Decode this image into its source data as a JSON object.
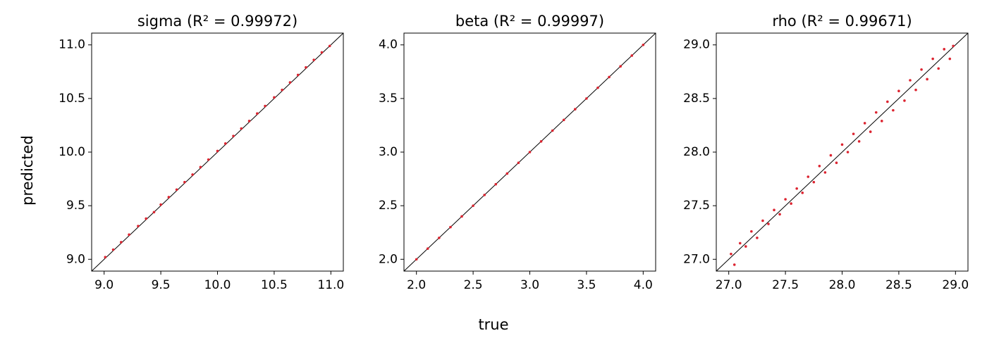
{
  "figure": {
    "xlabel": "true",
    "ylabel": "predicted",
    "reference_line": true
  },
  "chart_data": [
    {
      "type": "scatter",
      "title": "sigma (R² = 0.99972)",
      "color": "#dc2430",
      "xlim": [
        8.89,
        11.11
      ],
      "ylim": [
        8.89,
        11.11
      ],
      "xticks": [
        {
          "value": 9,
          "label": "9.0"
        },
        9.5,
        {
          "value": 10,
          "label": "10.0"
        },
        10.5,
        {
          "value": 11,
          "label": "11.0"
        }
      ],
      "yticks": [
        {
          "value": 9,
          "label": "9.0"
        },
        9.5,
        {
          "value": 10,
          "label": "10.0"
        },
        10.5,
        {
          "value": 11,
          "label": "11.0"
        }
      ],
      "x": [
        9.01,
        9.08,
        9.15,
        9.22,
        9.3,
        9.37,
        9.44,
        9.5,
        9.57,
        9.64,
        9.71,
        9.78,
        9.85,
        9.92,
        10.0,
        10.07,
        10.14,
        10.21,
        10.28,
        10.35,
        10.42,
        10.5,
        10.57,
        10.64,
        10.71,
        10.78,
        10.85,
        10.92,
        10.99
      ],
      "values": [
        9.02,
        9.09,
        9.16,
        9.23,
        9.31,
        9.38,
        9.44,
        9.51,
        9.58,
        9.65,
        9.72,
        9.79,
        9.86,
        9.93,
        10.01,
        10.08,
        10.15,
        10.22,
        10.29,
        10.36,
        10.43,
        10.51,
        10.58,
        10.65,
        10.72,
        10.79,
        10.86,
        10.93,
        10.99
      ]
    },
    {
      "type": "scatter",
      "title": "beta (R² = 0.99997)",
      "color": "#dc2430",
      "xlim": [
        1.89,
        4.11
      ],
      "ylim": [
        1.89,
        4.11
      ],
      "xticks": [
        {
          "value": 2,
          "label": "2.0"
        },
        2.5,
        {
          "value": 3,
          "label": "3.0"
        },
        3.5,
        {
          "value": 4,
          "label": "4.0"
        }
      ],
      "yticks": [
        {
          "value": 2,
          "label": "2.0"
        },
        2.5,
        {
          "value": 3,
          "label": "3.0"
        },
        3.5,
        {
          "value": 4,
          "label": "4.0"
        }
      ],
      "x": [
        2.0,
        2.1,
        2.2,
        2.3,
        2.4,
        2.5,
        2.6,
        2.7,
        2.8,
        2.9,
        3.0,
        3.1,
        3.2,
        3.3,
        3.4,
        3.5,
        3.6,
        3.7,
        3.8,
        3.9,
        4.0
      ],
      "values": [
        2.0,
        2.1,
        2.2,
        2.3,
        2.4,
        2.5,
        2.6,
        2.7,
        2.8,
        2.9,
        3.0,
        3.1,
        3.2,
        3.3,
        3.4,
        3.5,
        3.6,
        3.7,
        3.8,
        3.9,
        4.0
      ]
    },
    {
      "type": "scatter",
      "title": "rho (R² = 0.99671)",
      "color": "#dc2430",
      "xlim": [
        26.89,
        29.11
      ],
      "ylim": [
        26.89,
        29.11
      ],
      "xticks": [
        {
          "value": 27,
          "label": "27.0"
        },
        27.5,
        {
          "value": 28,
          "label": "28.0"
        },
        28.5,
        {
          "value": 29,
          "label": "29.0"
        }
      ],
      "yticks": [
        {
          "value": 27,
          "label": "27.0"
        },
        27.5,
        {
          "value": 28,
          "label": "28.0"
        },
        28.5,
        {
          "value": 29,
          "label": "29.0"
        }
      ],
      "x": [
        27.02,
        27.05,
        27.1,
        27.15,
        27.2,
        27.25,
        27.3,
        27.35,
        27.4,
        27.45,
        27.5,
        27.55,
        27.6,
        27.65,
        27.7,
        27.75,
        27.8,
        27.85,
        27.9,
        27.95,
        28.0,
        28.05,
        28.1,
        28.15,
        28.2,
        28.25,
        28.3,
        28.35,
        28.4,
        28.45,
        28.5,
        28.55,
        28.6,
        28.65,
        28.7,
        28.75,
        28.8,
        28.85,
        28.9,
        28.95,
        28.98
      ],
      "values": [
        27.05,
        26.95,
        27.15,
        27.12,
        27.26,
        27.2,
        27.36,
        27.33,
        27.46,
        27.42,
        27.56,
        27.52,
        27.66,
        27.62,
        27.77,
        27.72,
        27.87,
        27.81,
        27.97,
        27.9,
        28.07,
        28.0,
        28.17,
        28.1,
        28.27,
        28.19,
        28.37,
        28.29,
        28.47,
        28.39,
        28.57,
        28.48,
        28.67,
        28.58,
        28.77,
        28.68,
        28.87,
        28.78,
        28.96,
        28.87,
        28.99
      ]
    }
  ]
}
